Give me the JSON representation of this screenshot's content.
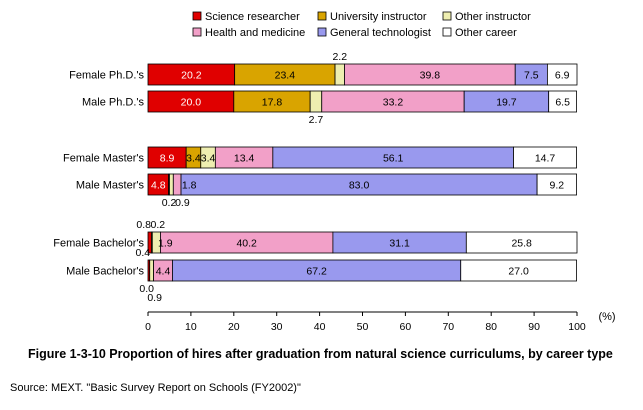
{
  "chart_data": {
    "type": "bar",
    "stacked": true,
    "orientation": "horizontal",
    "percent_unit_label": "(%)",
    "xlim": [
      0,
      100
    ],
    "x_ticks": [
      "0",
      "10",
      "20",
      "30",
      "40",
      "50",
      "60",
      "70",
      "80",
      "90",
      "100"
    ],
    "legend_placement": "top-center",
    "categories": [
      "Female Ph.D.'s",
      "Male Ph.D.'s",
      "Female Master's",
      "Male Master's",
      "Female Bachelor's",
      "Male Bachelor's"
    ],
    "series": [
      {
        "name": "Science researcher",
        "color": "#e00000",
        "values": [
          20.2,
          20.0,
          8.9,
          4.8,
          0.8,
          0.4
        ]
      },
      {
        "name": "University instructor",
        "color": "#d9a400",
        "values": [
          23.4,
          17.8,
          3.4,
          0.2,
          0.2,
          0.0
        ]
      },
      {
        "name": "Other instructor",
        "color": "#eeeeb0",
        "values": [
          2.2,
          2.7,
          3.4,
          0.9,
          1.9,
          0.9
        ]
      },
      {
        "name": "Health and medicine",
        "color": "#f2a0c8",
        "values": [
          39.8,
          33.2,
          13.4,
          1.8,
          40.2,
          4.4
        ]
      },
      {
        "name": "General technologist",
        "color": "#9999ee",
        "values": [
          7.5,
          19.7,
          56.1,
          83.0,
          31.1,
          67.2
        ]
      },
      {
        "name": "Other career",
        "color": "#ffffff",
        "values": [
          6.9,
          6.5,
          14.7,
          9.2,
          25.8,
          27.0
        ]
      }
    ]
  },
  "caption": {
    "title": "Figure 1-3-10   Proportion of hires after graduation from natural science curriculums, by career type",
    "source": "Source: MEXT. \"Basic Survey Report on Schools (FY2002)\""
  }
}
